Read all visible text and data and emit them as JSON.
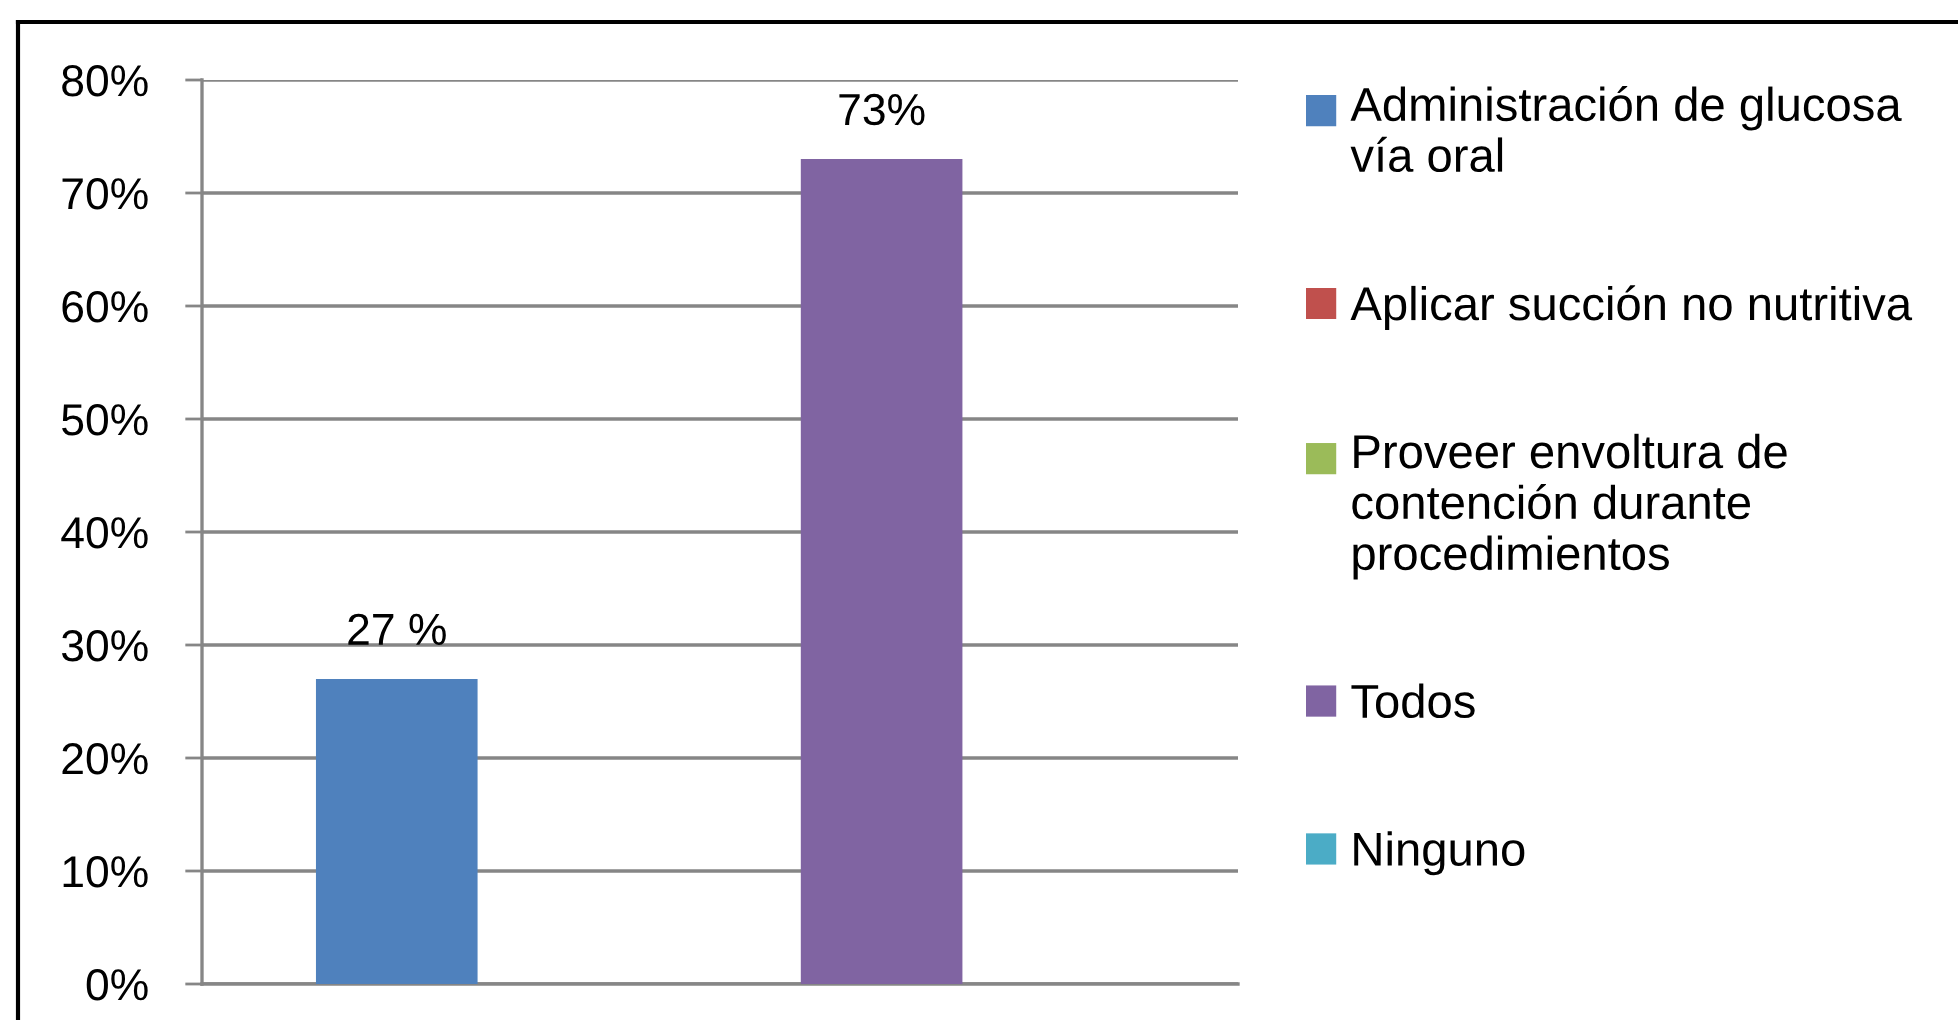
{
  "chart_data": {
    "type": "bar",
    "categories": [
      null
    ],
    "series": [
      {
        "name": "Administración de glucosa vía oral",
        "color": "#4f81bd",
        "values": [
          27
        ],
        "value_labels": [
          "27 %"
        ]
      },
      {
        "name": "Aplicar succión no nutritiva",
        "color": "#c0504d",
        "values": [
          null
        ]
      },
      {
        "name": "Proveer envoltura de contención durante procedimientos",
        "color": "#9bbb59",
        "values": [
          null
        ]
      },
      {
        "name": "Todos",
        "color": "#8064a2",
        "values": [
          73
        ],
        "value_labels": [
          "73%"
        ]
      },
      {
        "name": "Ninguno",
        "color": "#4bacc6",
        "values": [
          null
        ]
      }
    ],
    "ylim": [
      0,
      80
    ],
    "yticks": [
      {
        "value": 0,
        "label": "0%"
      },
      {
        "value": 10,
        "label": "10%"
      },
      {
        "value": 20,
        "label": "20%"
      },
      {
        "value": 30,
        "label": "30%"
      },
      {
        "value": 40,
        "label": "40%"
      },
      {
        "value": 50,
        "label": "50%"
      },
      {
        "value": 60,
        "label": "60%"
      },
      {
        "value": 70,
        "label": "70%"
      },
      {
        "value": 80,
        "label": "80%"
      }
    ],
    "grid": "y",
    "legend": "right",
    "tick_labels": "y"
  }
}
